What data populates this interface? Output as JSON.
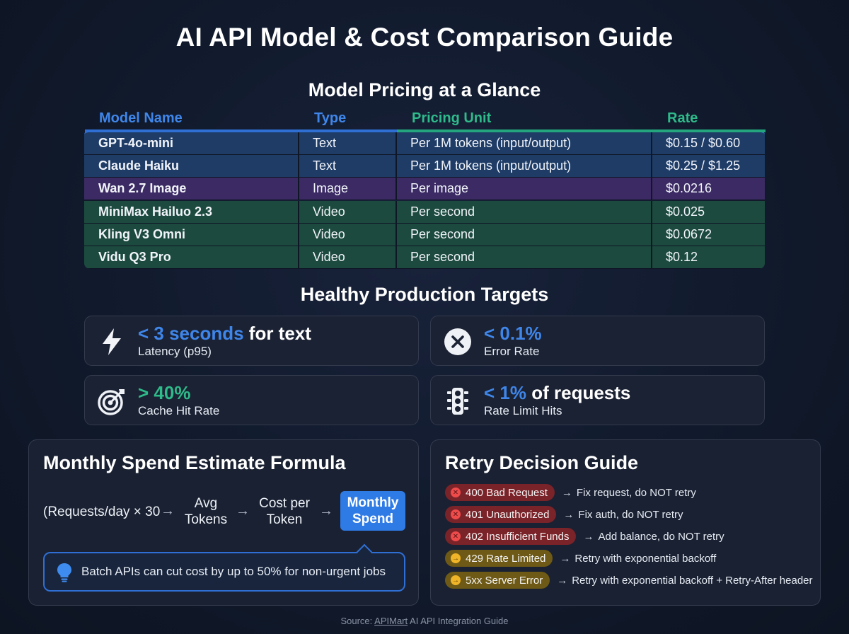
{
  "title": "AI API Model & Cost Comparison Guide",
  "pricing": {
    "title": "Model Pricing at a Glance",
    "headers": [
      "Model Name",
      "Type",
      "Pricing Unit",
      "Rate"
    ],
    "header_colors": [
      "#3f86ea",
      "#3f86ea",
      "#2fba8a",
      "#2fba8a"
    ],
    "rows": [
      {
        "name": "GPT-4o-mini",
        "type": "Text",
        "unit": "Per 1M tokens (input/output)",
        "rate": "$0.15 / $0.60",
        "color": "#1e3c66"
      },
      {
        "name": "Claude Haiku",
        "type": "Text",
        "unit": "Per 1M tokens (input/output)",
        "rate": "$0.25 / $1.25",
        "color": "#1e3c66"
      },
      {
        "name": "Wan 2.7 Image",
        "type": "Image",
        "unit": "Per image",
        "rate": "$0.0216",
        "color": "#3b2a63"
      },
      {
        "name": "MiniMax Hailuo 2.3",
        "type": "Video",
        "unit": "Per second",
        "rate": "$0.025",
        "color": "#1c4a3e"
      },
      {
        "name": "Kling V3 Omni",
        "type": "Video",
        "unit": "Per second",
        "rate": "$0.0672",
        "color": "#1c4a3e"
      },
      {
        "name": "Vidu Q3 Pro",
        "type": "Video",
        "unit": "Per second",
        "rate": "$0.12",
        "color": "#1c4a3e"
      }
    ]
  },
  "targets": {
    "title": "Healthy Production Targets",
    "items": [
      {
        "value": "< 3 seconds",
        "suffix": " for text",
        "label": "Latency (p95)",
        "icon": "lightning-icon"
      },
      {
        "value": "< 0.1%",
        "suffix": "",
        "label": "Error Rate",
        "icon": "x-circle-icon"
      },
      {
        "value": "> 40%",
        "suffix": "",
        "label": "Cache Hit Rate",
        "icon": "target-icon"
      },
      {
        "value": "< 1%",
        "suffix": " of requests",
        "label": "Rate Limit Hits",
        "icon": "traffic-light-icon"
      }
    ]
  },
  "formula": {
    "title": "Monthly Spend Estimate Formula",
    "steps": [
      "(Requests/day × 30",
      "Avg\nTokens",
      "Cost per\nToken"
    ],
    "arrow": "→",
    "result": "Monthly\nSpend",
    "tip": "Batch APIs can cut cost by up to 50% for non-urgent jobs",
    "tip_icon": "lightbulb-icon"
  },
  "retry": {
    "title": "Retry Decision Guide",
    "arrow": "→",
    "items": [
      {
        "code": "400 Bad Request",
        "action": "Fix request, do NOT retry",
        "level": "red"
      },
      {
        "code": "401 Unauthorized",
        "action": "Fix auth, do NOT retry",
        "level": "red"
      },
      {
        "code": "402 Insufficient Funds",
        "action": "Add balance, do NOT retry",
        "level": "red"
      },
      {
        "code": "429 Rate Limited",
        "action": "Retry with exponential backoff",
        "level": "amber"
      },
      {
        "code": "5xx Server Error",
        "action": "Retry with exponential backoff + Retry-After header",
        "level": "amber"
      }
    ]
  },
  "source": {
    "prefix": "Source: ",
    "link": "APIMart",
    "suffix": " AI API Integration Guide"
  }
}
